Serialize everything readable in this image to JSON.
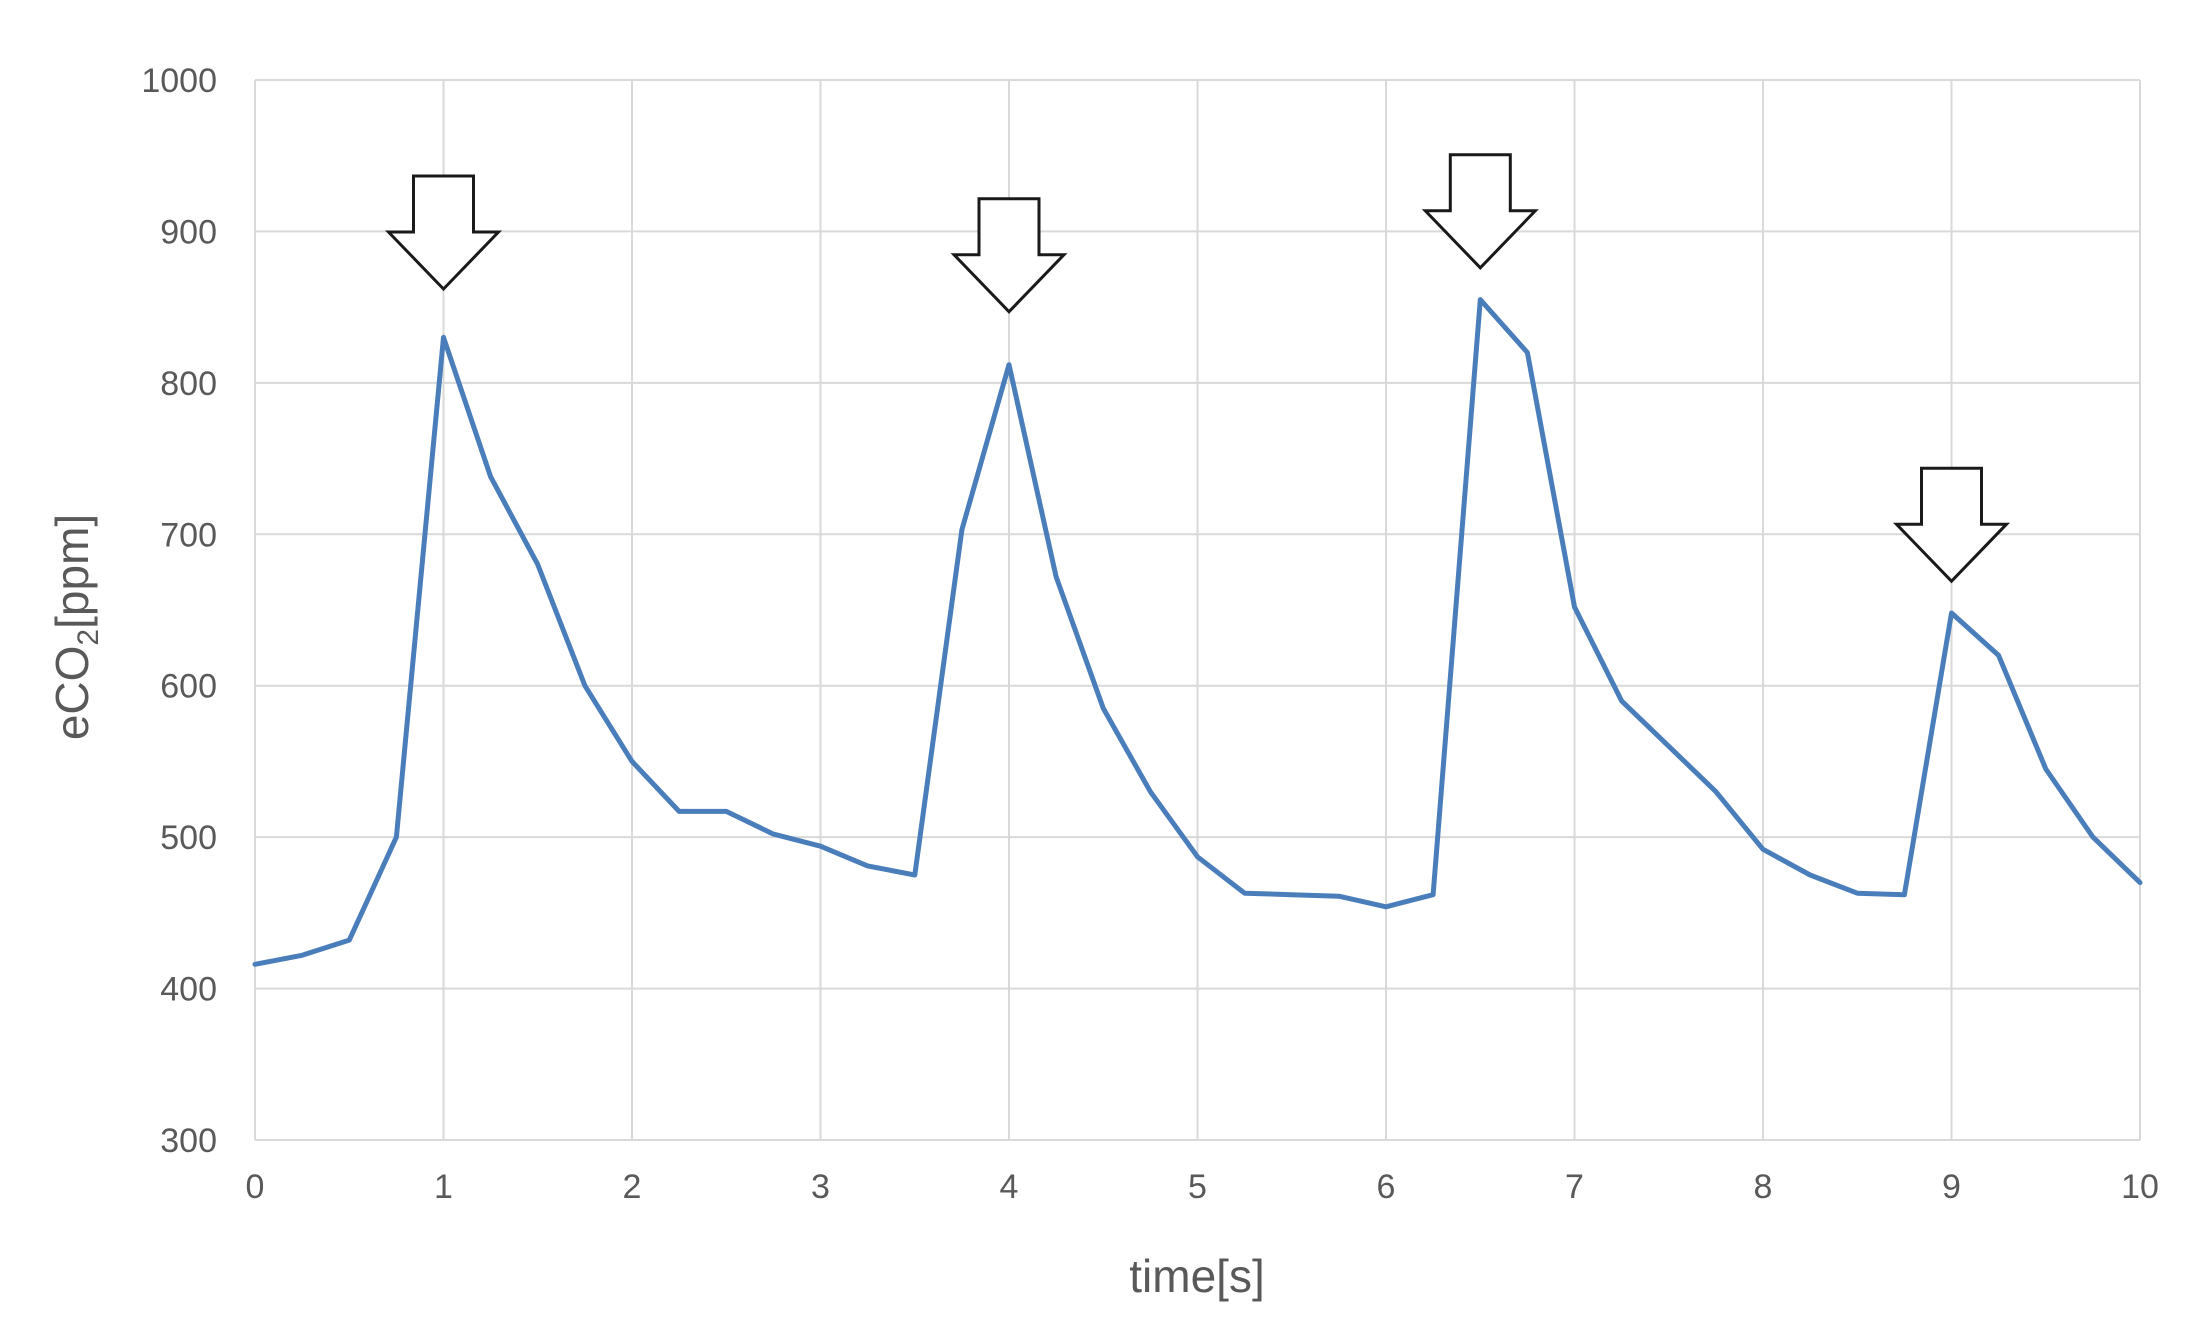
{
  "chart_data": {
    "type": "line",
    "xlabel": "time[s]",
    "ylabel": {
      "prefix": "eCO",
      "subscript": "2",
      "suffix": "[ppm]"
    },
    "xlim": [
      0,
      10
    ],
    "ylim": [
      300,
      1000
    ],
    "x_ticks": [
      0,
      1,
      2,
      3,
      4,
      5,
      6,
      7,
      8,
      9,
      10
    ],
    "y_ticks": [
      300,
      400,
      500,
      600,
      700,
      800,
      900,
      1000
    ],
    "grid": true,
    "legend": "none",
    "line_color": "#4A7EBB",
    "grid_color": "#D9D9D9",
    "series": [
      {
        "x": [
          0,
          0.25,
          0.5,
          0.75,
          1.0,
          1.25,
          1.5,
          1.75,
          2.0,
          2.25,
          2.5,
          2.75,
          3.0,
          3.25,
          3.5,
          3.75,
          4.0,
          4.25,
          4.5,
          4.75,
          5.0,
          5.25,
          5.5,
          5.75,
          6.0,
          6.25,
          6.5,
          6.75,
          7.0,
          7.25,
          7.5,
          7.75,
          8.0,
          8.25,
          8.5,
          8.75,
          9.0,
          9.25,
          9.5,
          9.75,
          10.0
        ],
        "y": [
          416,
          422,
          432,
          500,
          830,
          738,
          680,
          600,
          550,
          517,
          517,
          502,
          494,
          481,
          475,
          703,
          812,
          672,
          585,
          530,
          487,
          463,
          462,
          461,
          454,
          462,
          855,
          820,
          652,
          590,
          560,
          530,
          492,
          475,
          463,
          462,
          648,
          620,
          545,
          500,
          470
        ]
      }
    ],
    "annotations": [
      {
        "type": "down-arrow",
        "x": 1.0,
        "tip_y": 862
      },
      {
        "type": "down-arrow",
        "x": 4.0,
        "tip_y": 847
      },
      {
        "type": "down-arrow",
        "x": 6.5,
        "tip_y": 876
      },
      {
        "type": "down-arrow",
        "x": 9.0,
        "tip_y": 669
      }
    ]
  }
}
